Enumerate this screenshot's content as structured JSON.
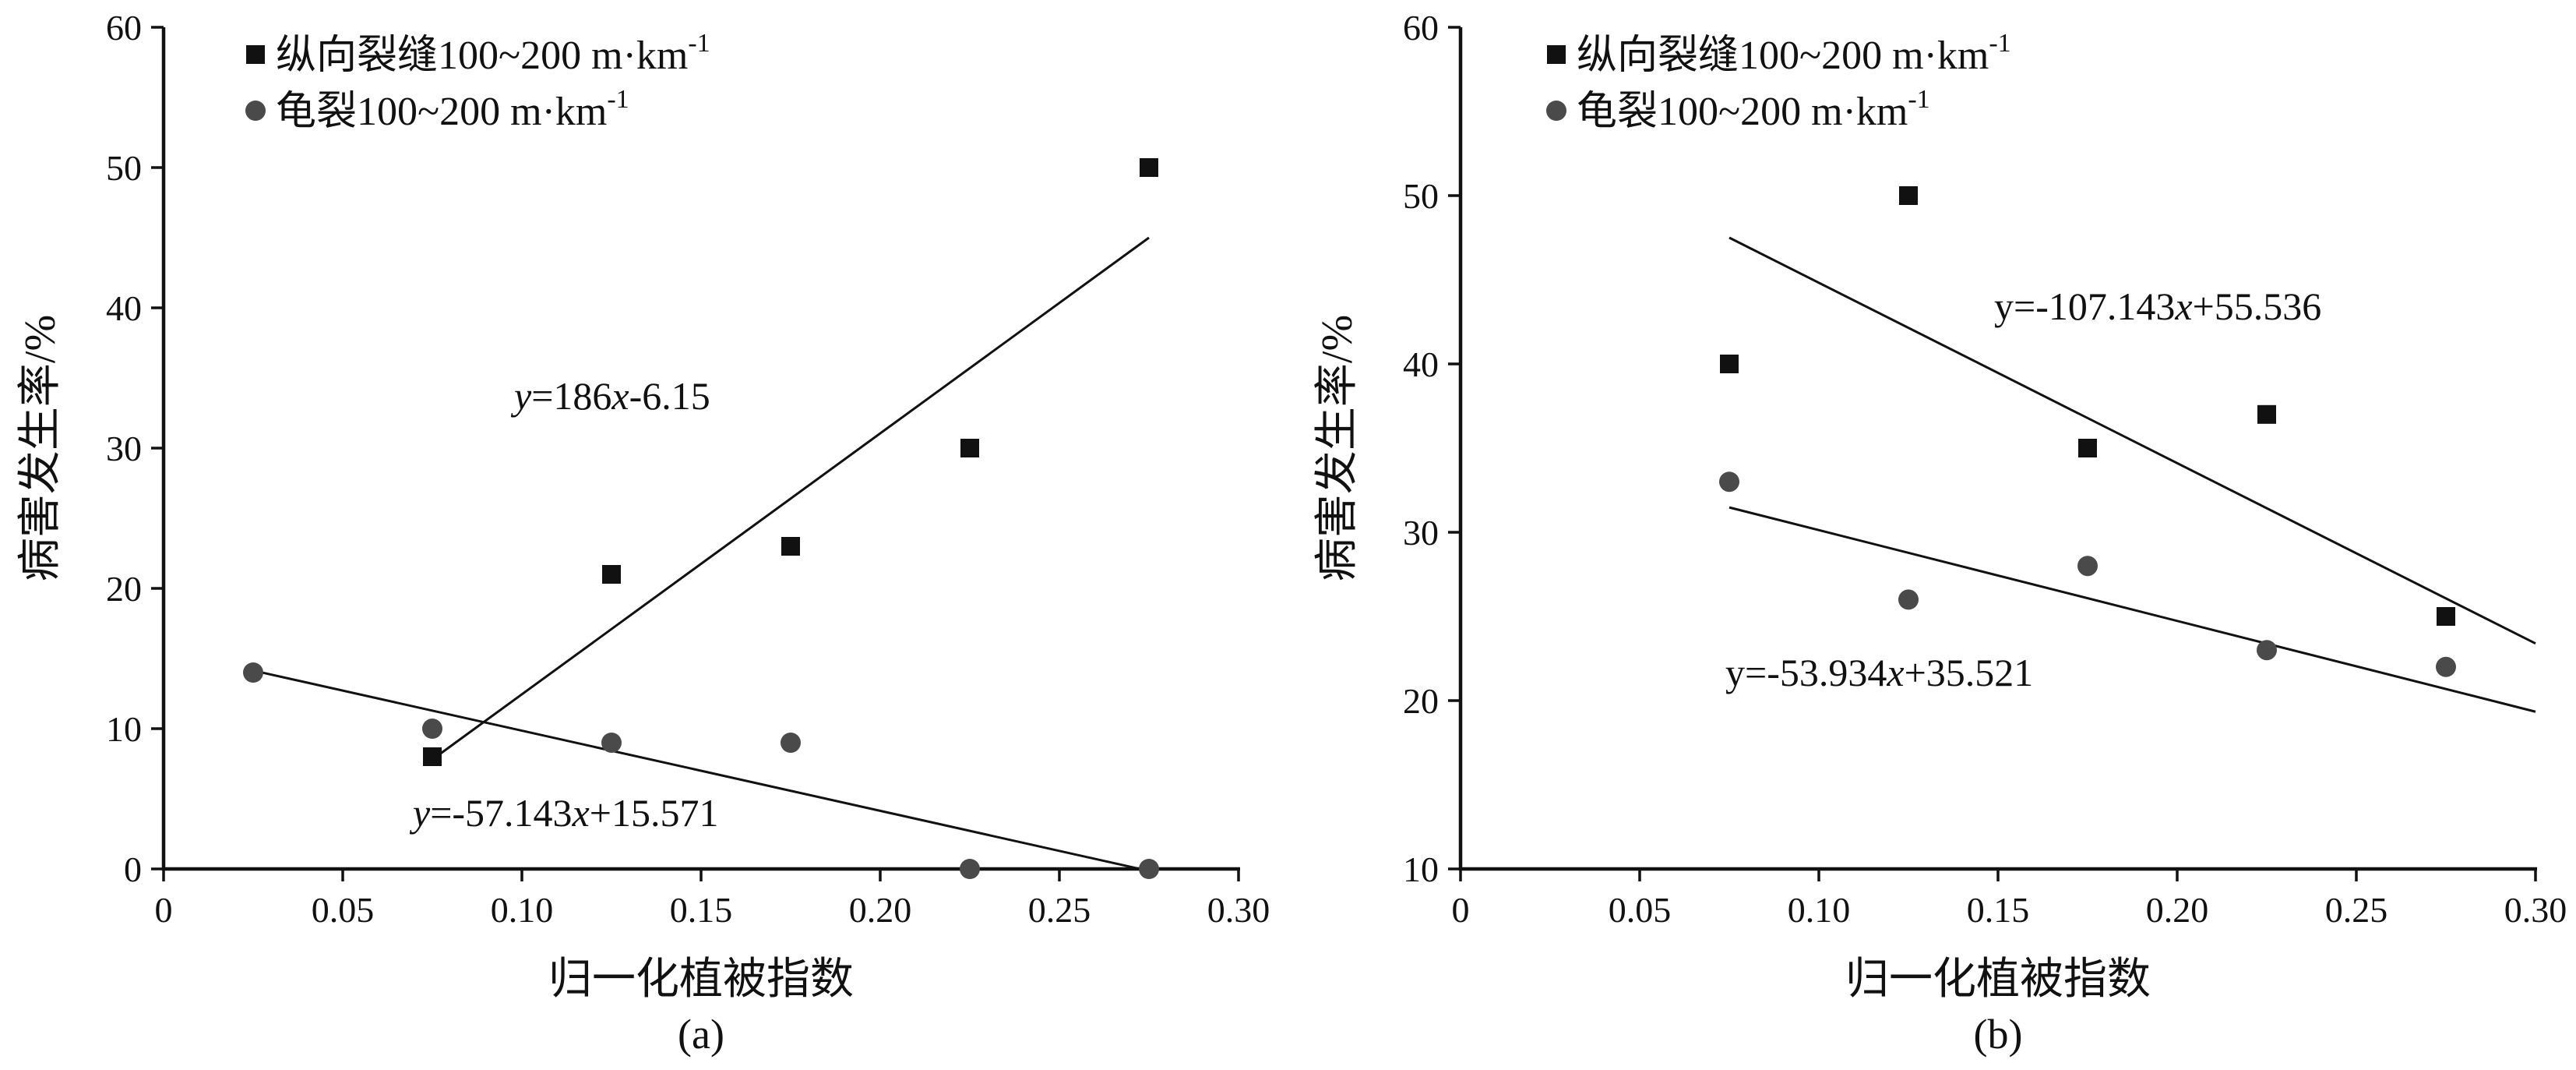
{
  "chart_data": [
    {
      "type": "scatter",
      "panel": "(a)",
      "xlabel": "归一化植被指数",
      "ylabel": "病害发生率/%",
      "xlim": [
        0,
        0.3
      ],
      "ylim": [
        0,
        60
      ],
      "x_ticks": [
        "0",
        "0.05",
        "0.10",
        "0.15",
        "0.20",
        "0.25",
        "0.30"
      ],
      "y_ticks": [
        "0",
        "10",
        "20",
        "30",
        "40",
        "50",
        "60"
      ],
      "legend_position": "top-left",
      "series": [
        {
          "name": "纵向裂缝100~200 m·km",
          "name_sup": "-1",
          "marker": "square",
          "color": "#111111",
          "points": [
            [
              0.075,
              8
            ],
            [
              0.125,
              21
            ],
            [
              0.175,
              23
            ],
            [
              0.225,
              30
            ],
            [
              0.275,
              50
            ]
          ],
          "fit": {
            "slope": 186,
            "intercept": -6.15,
            "x_range": [
              0.075,
              0.275
            ],
            "equation": [
              {
                "t": "y",
                "i": true
              },
              {
                "t": "=186"
              },
              {
                "t": "x",
                "i": true
              },
              {
                "t": "-6.15"
              }
            ]
          }
        },
        {
          "name": "龟裂100~200 m·km",
          "name_sup": "-1",
          "marker": "circle",
          "color": "#4a4a4a",
          "points": [
            [
              0.025,
              14
            ],
            [
              0.075,
              10
            ],
            [
              0.125,
              9
            ],
            [
              0.175,
              9
            ],
            [
              0.225,
              0
            ],
            [
              0.275,
              0
            ]
          ],
          "fit": {
            "slope": -57.143,
            "intercept": 15.571,
            "x_range": [
              0.025,
              0.275
            ],
            "equation": [
              {
                "t": "y",
                "i": true
              },
              {
                "t": "=-57.143"
              },
              {
                "t": "x",
                "i": true
              },
              {
                "t": "+15.571"
              }
            ]
          }
        }
      ]
    },
    {
      "type": "scatter",
      "panel": "(b)",
      "xlabel": "归一化植被指数",
      "ylabel": "病害发生率/%",
      "xlim": [
        0,
        0.3
      ],
      "ylim": [
        10,
        60
      ],
      "x_ticks": [
        "0",
        "0.05",
        "0.10",
        "0.15",
        "0.20",
        "0.25",
        "0.30"
      ],
      "y_ticks": [
        "10",
        "20",
        "30",
        "40",
        "50",
        "60"
      ],
      "legend_position": "top-left",
      "series": [
        {
          "name": "纵向裂缝100~200 m·km",
          "name_sup": "-1",
          "marker": "square",
          "color": "#111111",
          "points": [
            [
              0.075,
              40
            ],
            [
              0.125,
              50
            ],
            [
              0.175,
              35
            ],
            [
              0.225,
              37
            ],
            [
              0.275,
              25
            ]
          ],
          "fit": {
            "slope": -107.143,
            "intercept": 55.536,
            "x_range": [
              0.075,
              0.3
            ],
            "equation": [
              {
                "t": "y=-107.143"
              },
              {
                "t": "x",
                "i": true
              },
              {
                "t": "+55.536"
              }
            ]
          }
        },
        {
          "name": "龟裂100~200 m·km",
          "name_sup": "-1",
          "marker": "circle",
          "color": "#4a4a4a",
          "points": [
            [
              0.075,
              33
            ],
            [
              0.125,
              26
            ],
            [
              0.175,
              28
            ],
            [
              0.225,
              23
            ],
            [
              0.275,
              22
            ]
          ],
          "fit": {
            "slope": -53.934,
            "intercept": 35.521,
            "x_range": [
              0.075,
              0.3
            ],
            "equation": [
              {
                "t": "y=-53.934"
              },
              {
                "t": "x",
                "i": true
              },
              {
                "t": "+35.521"
              }
            ]
          }
        }
      ]
    }
  ]
}
